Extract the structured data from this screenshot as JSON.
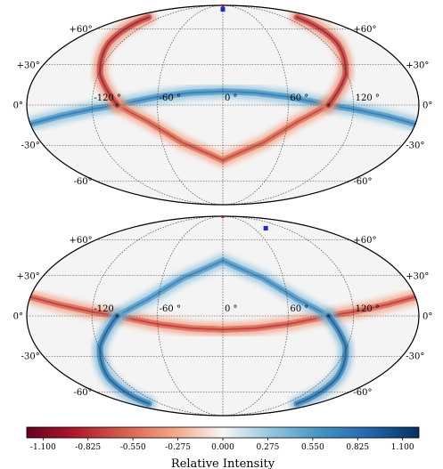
{
  "chart_data": [
    {
      "type": "heatmap",
      "projection": "mollweide",
      "panel": "top",
      "grid": true,
      "lon_labels": [
        "-120 °",
        "-60 °",
        "0 °",
        "60 °",
        "120 °"
      ],
      "lat_labels_left": [
        "+60°",
        "+30°",
        "0°",
        "-30°",
        "-60°"
      ],
      "lat_labels_right": [
        "+60°",
        "+30°",
        "0°",
        "-30°",
        "-60°"
      ],
      "nodes_lonlat": [
        [
          -97,
          0
        ],
        [
          97,
          0
        ]
      ],
      "bands": [
        {
          "sign": "positive",
          "peak": 0.9,
          "path_lonlat": [
            [
              -180,
              -14
            ],
            [
              -150,
              -8
            ],
            [
              -120,
              -3
            ],
            [
              -97,
              0
            ],
            [
              -60,
              6
            ],
            [
              -30,
              9
            ],
            [
              0,
              10
            ],
            [
              30,
              9
            ],
            [
              60,
              6
            ],
            [
              97,
              0
            ],
            [
              120,
              -3
            ],
            [
              150,
              -8
            ],
            [
              180,
              -14
            ]
          ]
        },
        {
          "sign": "negative",
          "peak": -0.85,
          "path_lonlat": [
            [
              -97,
              0
            ],
            [
              -70,
              -12
            ],
            [
              -40,
              -28
            ],
            [
              0,
              -42
            ],
            [
              40,
              -28
            ],
            [
              70,
              -12
            ],
            [
              97,
              0
            ]
          ]
        },
        {
          "sign": "negative",
          "peak": -1.1,
          "path_lonlat": [
            [
              -97,
              0
            ],
            [
              -118,
              22
            ],
            [
              -134,
              48
            ],
            [
              -143,
              72
            ]
          ]
        },
        {
          "sign": "negative",
          "peak": -1.1,
          "path_lonlat": [
            [
              97,
              0
            ],
            [
              118,
              22
            ],
            [
              134,
              48
            ],
            [
              143,
              72
            ]
          ]
        }
      ],
      "marker": {
        "lon": 0,
        "lat": 82,
        "color": "#1a2bdc"
      }
    },
    {
      "type": "heatmap",
      "projection": "mollweide",
      "panel": "bottom",
      "grid": true,
      "lon_labels": [
        "-120",
        "-60 °",
        "0 °",
        "60 °",
        "120 °"
      ],
      "lat_labels_left": [
        "+60°",
        "+30°",
        "0°",
        "-30°",
        "-60°"
      ],
      "lat_labels_right": [
        "+60°",
        "+30°",
        "0°",
        "-30°",
        "-60°"
      ],
      "nodes_lonlat": [
        [
          -97,
          0
        ],
        [
          97,
          0
        ]
      ],
      "bands": [
        {
          "sign": "negative",
          "peak": -0.9,
          "path_lonlat": [
            [
              -180,
              14
            ],
            [
              -150,
              8
            ],
            [
              -120,
              3
            ],
            [
              -97,
              0
            ],
            [
              -60,
              -6
            ],
            [
              -30,
              -9
            ],
            [
              0,
              -10
            ],
            [
              30,
              -9
            ],
            [
              60,
              -6
            ],
            [
              97,
              0
            ],
            [
              120,
              3
            ],
            [
              150,
              8
            ],
            [
              180,
              14
            ]
          ]
        },
        {
          "sign": "positive",
          "peak": 0.85,
          "path_lonlat": [
            [
              -97,
              0
            ],
            [
              -70,
              12
            ],
            [
              -40,
              28
            ],
            [
              0,
              42
            ],
            [
              40,
              28
            ],
            [
              70,
              12
            ],
            [
              97,
              0
            ]
          ]
        },
        {
          "sign": "positive",
          "peak": 1.1,
          "path_lonlat": [
            [
              -97,
              0
            ],
            [
              -118,
              -22
            ],
            [
              -134,
              -48
            ],
            [
              -143,
              -72
            ]
          ]
        },
        {
          "sign": "positive",
          "peak": 1.1,
          "path_lonlat": [
            [
              97,
              0
            ],
            [
              118,
              -22
            ],
            [
              134,
              -48
            ],
            [
              143,
              -72
            ]
          ]
        }
      ],
      "marker": {
        "lon": 83,
        "lat": 72,
        "color": "#1a2bdc"
      }
    },
    {
      "type": "colorbar",
      "title": "Relative Intensity",
      "vmin": -1.2,
      "vmax": 1.2,
      "ticks": [
        -1.1,
        -0.825,
        -0.55,
        -0.275,
        0.0,
        0.275,
        0.55,
        0.825,
        1.1
      ],
      "tick_labels": [
        "-1.100",
        "-0.825",
        "-0.550",
        "-0.275",
        "0.000",
        "0.275",
        "0.550",
        "0.825",
        "1.100"
      ],
      "colors": [
        "#67001f",
        "#b2182b",
        "#d6604d",
        "#f4a582",
        "#f7f7f7",
        "#92c5de",
        "#4393c3",
        "#2166ac",
        "#053061"
      ]
    }
  ]
}
